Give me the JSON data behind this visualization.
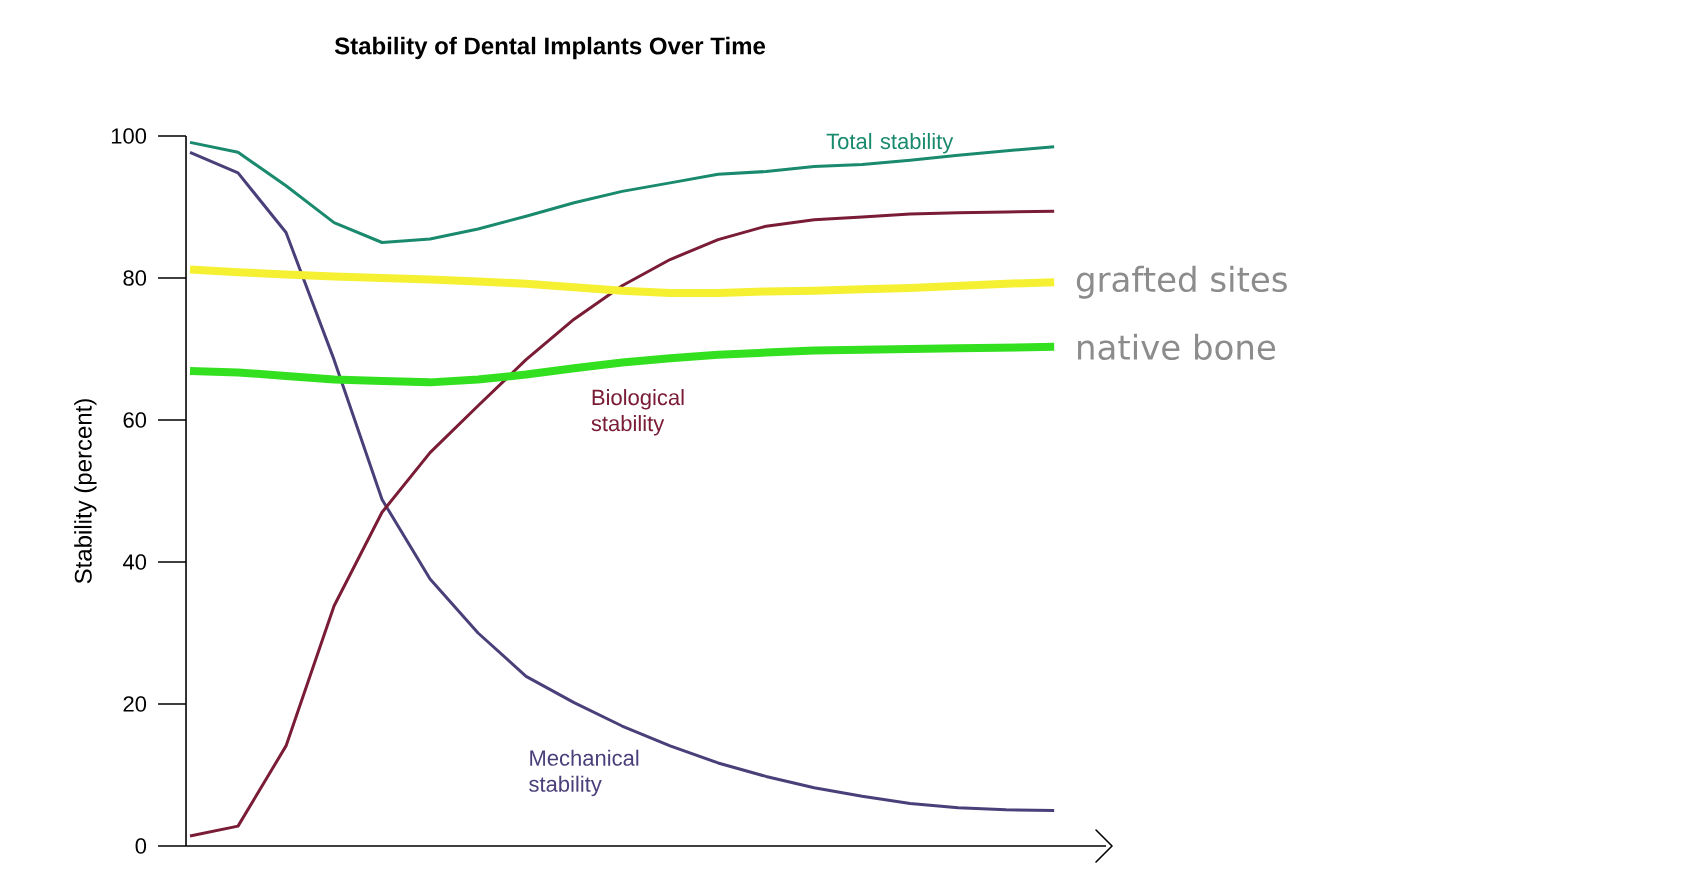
{
  "chart_data": {
    "type": "line",
    "title": "Stability of Dental Implants Over Time",
    "ylabel": "Stability (percent)",
    "categories": [
      null,
      null,
      null,
      null,
      null,
      null,
      null,
      null,
      null,
      null,
      null,
      null,
      null,
      null,
      null,
      null,
      null,
      null,
      null
    ],
    "ylim": [
      0,
      100
    ],
    "yticks": [
      0,
      20,
      40,
      60,
      80,
      100
    ],
    "tick_labels": "y",
    "marker": "none",
    "line_style": "solid",
    "series": [
      {
        "name": "Total stability",
        "color": "#1a8a6e",
        "values": [
          99.1,
          97.7,
          93,
          87.8,
          85,
          85.5,
          86.9,
          88.7,
          90.6,
          92.2,
          93.4,
          94.6,
          95,
          95.7,
          96,
          96.6,
          97.3,
          97.9,
          98.5
        ]
      },
      {
        "name": "Mechanical stability",
        "color": "#4b3f7a",
        "values": [
          97.7,
          94.8,
          86.4,
          68.5,
          48.8,
          37.6,
          30,
          23.9,
          20.2,
          16.9,
          14.1,
          11.7,
          9.8,
          8.2,
          7,
          6,
          5.4,
          5.1,
          5
        ]
      },
      {
        "name": "Biological stability",
        "color": "#7a1c36",
        "values": [
          1.4,
          2.8,
          14.1,
          33.8,
          47,
          55.4,
          62,
          68.5,
          74.2,
          78.9,
          82.6,
          85.4,
          87.3,
          88.2,
          88.6,
          89,
          89.2,
          89.3,
          89.4
        ]
      },
      {
        "name": "grafted sites",
        "color": "#f5f032",
        "values": [
          81.2,
          80.8,
          80.5,
          80.2,
          80,
          79.8,
          79.5,
          79.2,
          78.7,
          78.2,
          77.9,
          77.9,
          78.1,
          78.2,
          78.4,
          78.6,
          78.9,
          79.2,
          79.4
        ]
      },
      {
        "name": "native bone",
        "color": "#33e01f",
        "values": [
          66.9,
          66.7,
          66.2,
          65.7,
          65.5,
          65.3,
          65.7,
          66.4,
          67.3,
          68.1,
          68.7,
          69.2,
          69.5,
          69.8,
          69.9,
          70,
          70.1,
          70.2,
          70.3
        ]
      }
    ]
  }
}
